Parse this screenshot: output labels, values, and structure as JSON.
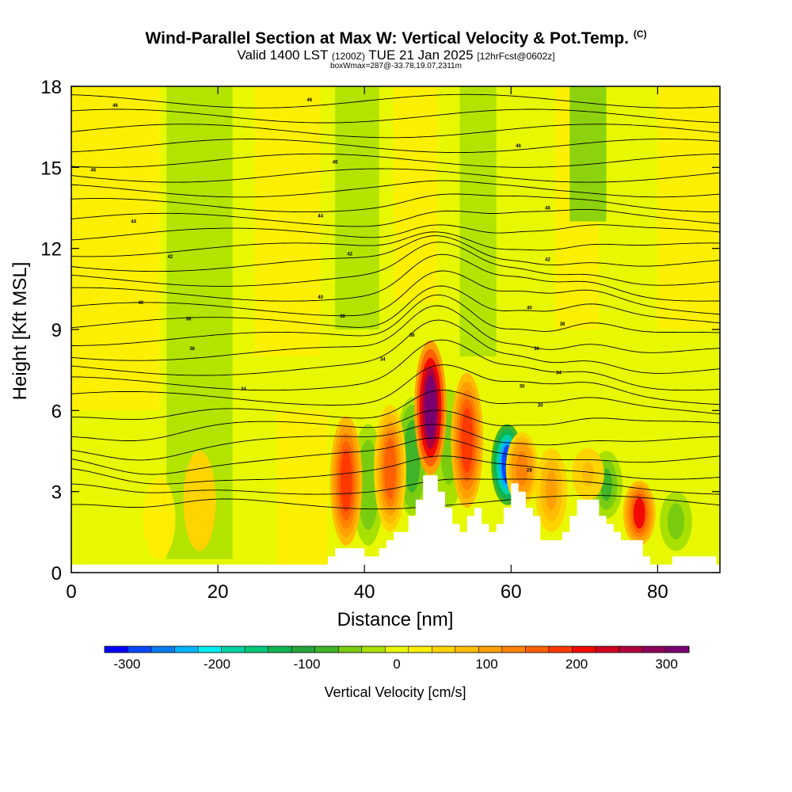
{
  "header": {
    "title": "Wind-Parallel Section at Max W: Vertical Velocity & Pot.Temp.",
    "copyright": "(C)",
    "valid_prefix": "Valid 1400 LST",
    "valid_utc": "(1200Z)",
    "valid_date": "TUE 21 Jan 2025",
    "forecast": "[12hrFcst@0602z]",
    "boxwmax": "boxWmax=287@-33.78,19.07,2311m"
  },
  "colors": {
    "scale": [
      "#0000ff",
      "#0a48ff",
      "#0a7cf0",
      "#00b4ff",
      "#00ecf0",
      "#00d2a0",
      "#00c878",
      "#10b450",
      "#24a43a",
      "#40b428",
      "#7acc10",
      "#a8e000",
      "#e8f800",
      "#ffee00",
      "#ffd400",
      "#ffbc00",
      "#ffa000",
      "#ff8200",
      "#ff6000",
      "#ff3a00",
      "#f00a00",
      "#d0001e",
      "#b0003c",
      "#8c005a",
      "#780070"
    ],
    "terrain_fill": "#ffffff",
    "contour": "#000000"
  },
  "chart_data": {
    "type": "heatmap",
    "xlabel": "Distance [nm]",
    "ylabel": "Height [Kft MSL]",
    "xlim": [
      0,
      88.5
    ],
    "ylim": [
      0,
      18
    ],
    "xticks": [
      0,
      20,
      40,
      60,
      80
    ],
    "yticks": [
      0,
      3,
      6,
      9,
      12,
      15,
      18
    ],
    "colorbar": {
      "label": "Vertical Velocity [cm/s]",
      "min": -325,
      "max": 325,
      "step": 25,
      "tick_values": [
        -300,
        -200,
        -100,
        0,
        100,
        200,
        300
      ]
    },
    "theta_contour_labels": [
      {
        "x": 6,
        "y": 17.3,
        "text": "46"
      },
      {
        "x": 32.5,
        "y": 17.5,
        "text": "46"
      },
      {
        "x": 3,
        "y": 14.9,
        "text": "46"
      },
      {
        "x": 36,
        "y": 15.2,
        "text": "46"
      },
      {
        "x": 61,
        "y": 15.8,
        "text": "46"
      },
      {
        "x": 8.5,
        "y": 13.0,
        "text": "44"
      },
      {
        "x": 34,
        "y": 13.2,
        "text": "44"
      },
      {
        "x": 65,
        "y": 13.5,
        "text": "46"
      },
      {
        "x": 13.5,
        "y": 11.7,
        "text": "42"
      },
      {
        "x": 38,
        "y": 11.8,
        "text": "42"
      },
      {
        "x": 65,
        "y": 11.6,
        "text": "42"
      },
      {
        "x": 9.5,
        "y": 10.0,
        "text": "40"
      },
      {
        "x": 34,
        "y": 10.2,
        "text": "40"
      },
      {
        "x": 62.5,
        "y": 9.8,
        "text": "40"
      },
      {
        "x": 16,
        "y": 9.4,
        "text": "38"
      },
      {
        "x": 37,
        "y": 9.5,
        "text": "38"
      },
      {
        "x": 67,
        "y": 9.2,
        "text": "38"
      },
      {
        "x": 16.5,
        "y": 8.3,
        "text": "36"
      },
      {
        "x": 46.5,
        "y": 8.8,
        "text": "36"
      },
      {
        "x": 63.5,
        "y": 8.3,
        "text": "36"
      },
      {
        "x": 23.5,
        "y": 6.8,
        "text": "34"
      },
      {
        "x": 42.5,
        "y": 7.9,
        "text": "34"
      },
      {
        "x": 66.5,
        "y": 7.4,
        "text": "34"
      },
      {
        "x": 61.5,
        "y": 6.9,
        "text": "30"
      },
      {
        "x": 64,
        "y": 6.2,
        "text": "30"
      },
      {
        "x": 62.5,
        "y": 3.8,
        "text": "28"
      }
    ],
    "terrain_heights": [
      0.3,
      0.3,
      0.3,
      0.3,
      0.3,
      0.3,
      0.3,
      0.3,
      0.3,
      0.3,
      0.3,
      0.3,
      0.3,
      0.3,
      0.3,
      0.3,
      0.3,
      0.3,
      0.3,
      0.3,
      0.3,
      0.3,
      0.3,
      0.3,
      0.3,
      0.3,
      0.3,
      0.3,
      0.3,
      0.3,
      0.3,
      0.3,
      0.3,
      0.3,
      0.3,
      0.6,
      0.9,
      0.9,
      0.9,
      0.9,
      0.6,
      0.6,
      0.9,
      1.2,
      1.5,
      1.5,
      2.1,
      2.7,
      3.6,
      3.6,
      3.0,
      2.4,
      1.8,
      1.5,
      2.1,
      2.4,
      1.8,
      1.5,
      1.8,
      2.4,
      3.3,
      3.0,
      2.4,
      2.1,
      1.2,
      1.2,
      1.2,
      1.5,
      2.1,
      2.7,
      2.7,
      2.7,
      2.1,
      1.8,
      1.5,
      1.2,
      1.2,
      1.2,
      0.6,
      0.3,
      0.3,
      0.3,
      0.6,
      0.6,
      0.6,
      0.6,
      0.6,
      0.6,
      0.3
    ],
    "updraft_cores": [
      {
        "x": 37.5,
        "zmin": 1.0,
        "zmax": 5.8,
        "w": 150
      },
      {
        "x": 43.5,
        "zmin": 1.5,
        "zmax": 6.2,
        "w": 130
      },
      {
        "x": 49.0,
        "zmin": 3.6,
        "zmax": 8.6,
        "w": 287
      },
      {
        "x": 54.0,
        "zmin": 2.4,
        "zmax": 7.4,
        "w": 170
      },
      {
        "x": 61.5,
        "zmin": 2.5,
        "zmax": 5.2,
        "w": 110
      },
      {
        "x": 65.5,
        "zmin": 1.5,
        "zmax": 4.6,
        "w": 75
      },
      {
        "x": 70.5,
        "zmin": 2.7,
        "zmax": 4.6,
        "w": 55
      },
      {
        "x": 77.5,
        "zmin": 1.0,
        "zmax": 3.4,
        "w": 180
      },
      {
        "x": 17.5,
        "zmin": 0.8,
        "zmax": 4.5,
        "w": 35
      },
      {
        "x": 12.0,
        "zmin": 0.5,
        "zmax": 3.5,
        "w": 20
      }
    ],
    "downdraft_cores": [
      {
        "x": 40.5,
        "zmin": 1.0,
        "zmax": 5.5,
        "w": -70
      },
      {
        "x": 46.5,
        "zmin": 2.1,
        "zmax": 6.5,
        "w": -90
      },
      {
        "x": 51.5,
        "zmin": 2.4,
        "zmax": 6.8,
        "w": -60
      },
      {
        "x": 59.5,
        "zmin": 2.5,
        "zmax": 5.5,
        "w": -290
      },
      {
        "x": 73.0,
        "zmin": 2.0,
        "zmax": 4.5,
        "w": -80
      },
      {
        "x": 82.5,
        "zmin": 0.8,
        "zmax": 3.0,
        "w": -60
      }
    ]
  }
}
